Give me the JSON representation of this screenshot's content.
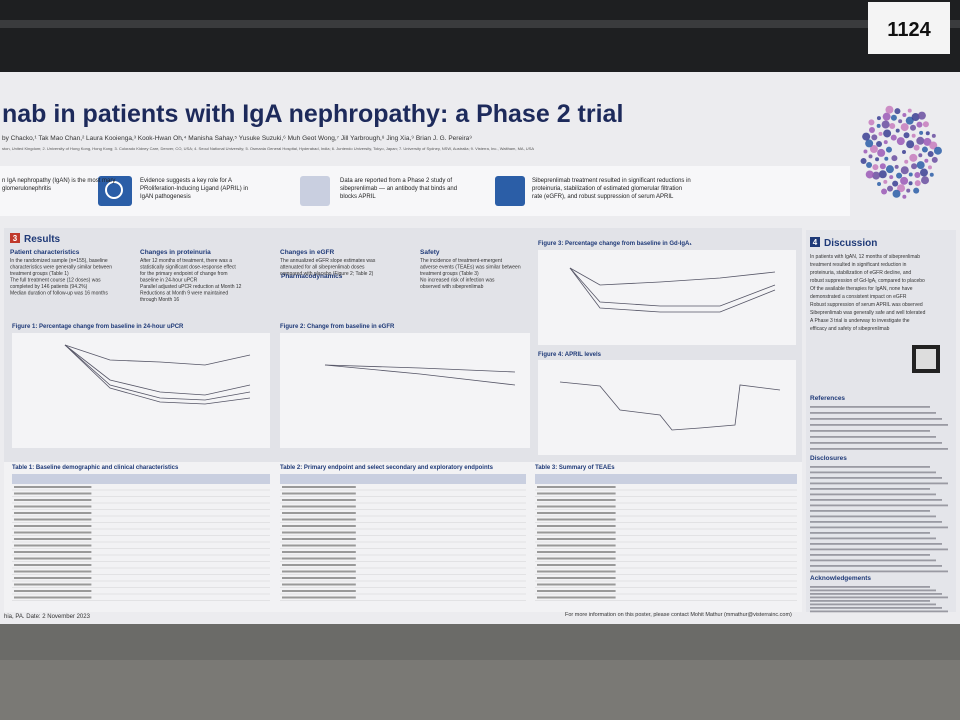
{
  "poster_number": "1124",
  "header": {
    "title": "nab in patients with IgA nephropathy: a Phase 2 trial",
    "authors": "by Chacko,¹ Tak Mao Chan,² Laura Kooienga,³ Kook-Hwan Oh,⁴ Manisha Sahay,⁵ Yusuke Suzuki,⁶ Muh Geot Wong,⁷ Jill Yarbrough,⁸ Jing Xia,⁹ Brian J. G. Pereira⁹",
    "affiliations": "ston, United Kingdom; 2. University of Hong Kong, Hong Kong; 3. Colorado Kidney Care, Denver, CO, USA; 4. Seoul National University; 5. Osmania General Hospital, Hyderabad, India; 6. Juntendo University, Tokyo, Japan; 7. University of Sydney, NSW, Australia; 9. Visterra, Inc., Waltham, MA, USA"
  },
  "banner": [
    {
      "text": "n IgA nephropathy (IgAN) is the most mary glomerulonephritis"
    },
    {
      "text": "Evidence suggests a key role for A PRoliferation-Inducing Ligand (APRIL) in IgAN pathogenesis"
    },
    {
      "text": "Data are reported from a Phase 2 study of sibeprenlimab — an antibody that binds and blocks APRIL"
    },
    {
      "text": "Sibeprenlimab treatment resulted in significant reductions in proteinuria, stabilization of estimated glomerular filtration rate (eGFR), and robust suppression of serum APRIL"
    }
  ],
  "results": {
    "number": "3",
    "heading": "Results",
    "columns": [
      {
        "heading": "Patient characteristics",
        "text": [
          "In the randomized sample (n=155), baseline",
          "characteristics were generally similar between",
          "treatment groups (Table 1)",
          "The full treatment course (12 doses) was",
          "completed by 146 patients (94.2%)",
          "Median duration of follow-up was 16 months"
        ]
      },
      {
        "heading": "Changes in proteinuria",
        "text": [
          "After 12 months of treatment, there was a",
          "statistically significant dose-response effect",
          "for the primary endpoint of change from",
          "baseline in 24-hour uPCR",
          "Parallel adjusted uPCR reduction at Month 12",
          "Reductions at Month 9 were maintained",
          "through Month 16"
        ]
      },
      {
        "heading": "Changes in eGFR",
        "text": [
          "The annualized eGFR slope estimates was",
          "attenuated for all sibeprenlimab doses",
          "compared with placebo (Figure 2; Table 2)"
        ]
      },
      {
        "heading": "Safety",
        "text": [
          "The incidence of treatment-emergent",
          "adverse events (TEAEs) was similar between",
          "treatment groups (Table 3)",
          "No increased risk of infection was",
          "observed with sibeprenlimab"
        ]
      }
    ],
    "pharmacodynamics": "Pharmacodynamics"
  },
  "figures": [
    {
      "title": "Figure 1: Percentage change from baseline in 24-hour uPCR"
    },
    {
      "title": "Figure 2: Change from baseline in eGFR"
    },
    {
      "title": "Figure 3: Percentage change from baseline in Gd-IgA₁"
    },
    {
      "title": "Figure 4: APRIL levels"
    }
  ],
  "tables": [
    {
      "title": "Table 1: Baseline demographic and clinical characteristics"
    },
    {
      "title": "Table 2: Primary endpoint and select secondary and exploratory endpoints"
    },
    {
      "title": "Table 3: Summary of TEAEs"
    }
  ],
  "discussion": {
    "number": "4",
    "heading": "Discussion",
    "text": [
      "In patients with IgAN, 12 months of sibeprenlimab",
      "treatment resulted in significant reduction in",
      "proteinuria, stabilization of eGFR decline, and",
      "robust suppression of Gd-IgA₁ compared to placebo",
      "Of the available therapies for IgAN, none have",
      "demonstrated a consistent impact on eGFR",
      "Robust suppression of serum APRIL was observed",
      "Sibeprenlimab was generally safe and well tolerated",
      "A Phase 3 trial is underway to investigate the",
      "efficacy and safety of sibeprenlimab"
    ],
    "references": "References",
    "disclosures": "Disclosures",
    "acknowledgements": "Acknowledgements"
  },
  "footer": {
    "left": "hia, PA. Date: 2 November 2023",
    "right": "For more information on this poster, please contact Mohit Mathur (mmathur@visterrainc.com)"
  }
}
